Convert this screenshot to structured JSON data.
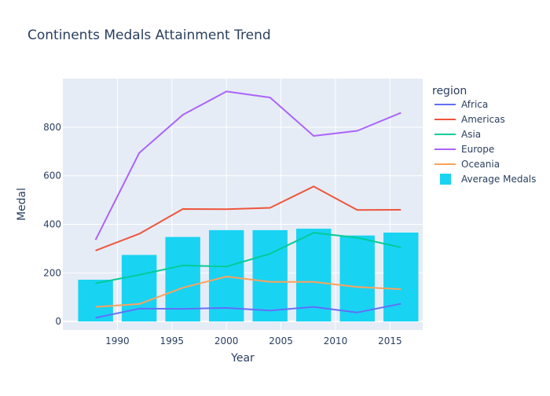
{
  "chart_data": {
    "type": "line",
    "title": "Continents Medals Attainment Trend",
    "xlabel": "Year",
    "ylabel": "Medal",
    "xlim": [
      1985,
      2018
    ],
    "ylim": [
      -35,
      1000
    ],
    "x_ticks": [
      1990,
      1995,
      2000,
      2005,
      2010,
      2015
    ],
    "y_ticks": [
      0,
      200,
      400,
      600,
      800
    ],
    "x": [
      1988,
      1992,
      1996,
      2000,
      2004,
      2008,
      2012,
      2016
    ],
    "legend_title": "region",
    "legend_position": "right",
    "series": [
      {
        "name": "Africa",
        "color": "#636efa",
        "values": [
          15,
          53,
          52,
          56,
          45,
          60,
          37,
          73
        ]
      },
      {
        "name": "Americas",
        "color": "#ef553b",
        "values": [
          292,
          361,
          463,
          462,
          468,
          556,
          459,
          460
        ]
      },
      {
        "name": "Asia",
        "color": "#00cc96",
        "values": [
          157,
          192,
          231,
          226,
          279,
          365,
          345,
          305
        ]
      },
      {
        "name": "Europe",
        "color": "#ab63fa",
        "values": [
          336,
          694,
          851,
          947,
          922,
          764,
          785,
          859
        ]
      },
      {
        "name": "Oceania",
        "color": "#ffa15a",
        "values": [
          60,
          72,
          139,
          185,
          163,
          163,
          142,
          133
        ]
      }
    ],
    "bar_series": {
      "name": "Average Medals",
      "color": "#19d3f3",
      "values": [
        172,
        274,
        348,
        376,
        376,
        382,
        354,
        366
      ]
    }
  }
}
